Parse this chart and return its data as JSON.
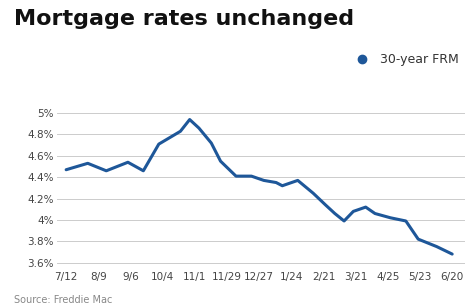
{
  "title": "Mortgage rates unchanged",
  "legend_label": "30-year FRM",
  "source_text": "Source: Freddie Mac",
  "line_color": "#1e5799",
  "background_color": "#ffffff",
  "x_labels": [
    "7/12",
    "8/9",
    "9/6",
    "10/4",
    "11/1",
    "11/29",
    "12/27",
    "1/24",
    "2/21",
    "3/21",
    "4/25",
    "5/23",
    "6/20"
  ],
  "y_values": [
    4.47,
    4.53,
    4.46,
    4.54,
    4.46,
    4.71,
    4.83,
    4.94,
    4.86,
    4.72,
    4.55,
    4.41,
    4.41,
    4.37,
    4.35,
    4.32,
    4.37,
    4.25,
    4.14,
    4.06,
    3.99,
    4.08,
    4.12,
    4.06,
    4.02,
    3.99,
    3.82,
    3.75,
    3.68
  ],
  "x_indices": [
    0,
    0.7,
    1.3,
    2,
    2.5,
    3,
    3.7,
    4,
    4.3,
    4.7,
    5,
    5.5,
    6,
    6.4,
    6.8,
    7,
    7.5,
    8,
    8.4,
    8.7,
    9,
    9.3,
    9.7,
    10,
    10.5,
    11,
    11.4,
    12,
    12.5
  ],
  "ylim": [
    3.55,
    5.05
  ],
  "yticks": [
    3.6,
    3.8,
    4.0,
    4.2,
    4.4,
    4.6,
    4.8,
    5.0
  ],
  "title_fontsize": 16,
  "axis_fontsize": 7.5,
  "legend_fontsize": 9,
  "source_fontsize": 7
}
